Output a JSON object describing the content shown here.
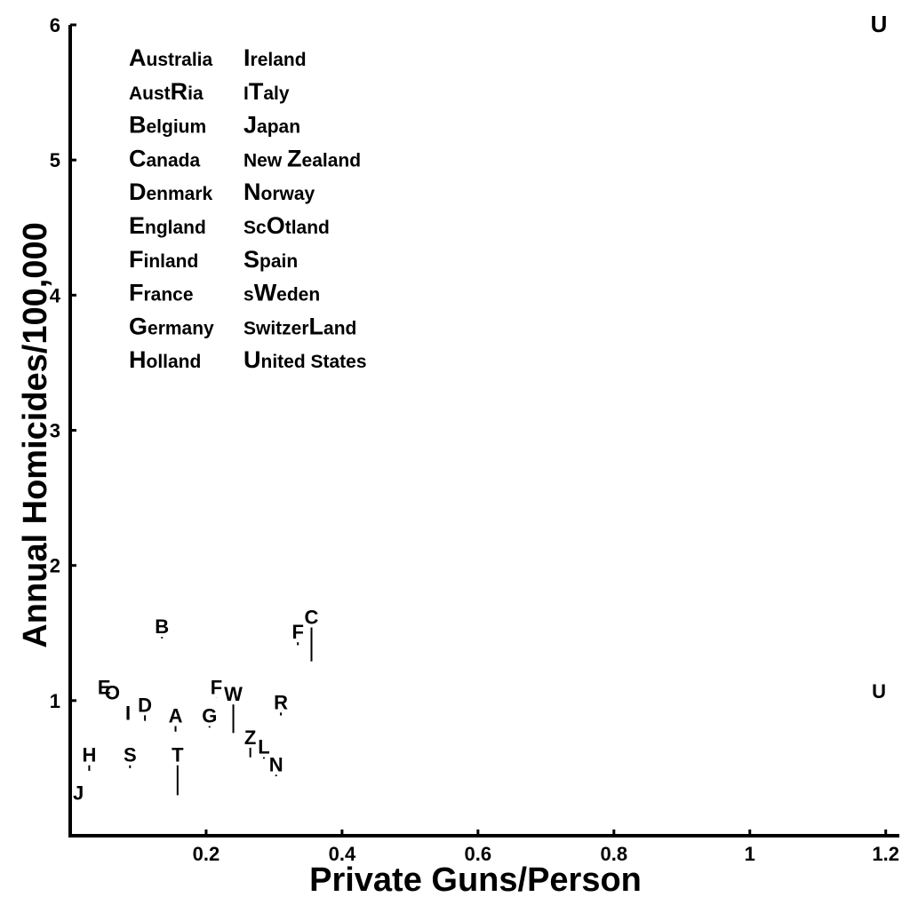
{
  "chart_data": {
    "type": "scatter",
    "title": "",
    "xlabel": "Private Guns/Person",
    "ylabel": "Annual Homicides/100,000",
    "xlim": [
      0,
      1.22
    ],
    "ylim": [
      0,
      6
    ],
    "x_ticks": [
      "0.2",
      "0.4",
      "0.6",
      "0.8",
      "1",
      "1.2"
    ],
    "y_ticks": [
      "1",
      "2",
      "3",
      "4",
      "5",
      "6"
    ],
    "grid": false,
    "legend_position": "top-left",
    "legend": [
      {
        "pre": "",
        "hi": "A",
        "post": "ustralia"
      },
      {
        "pre": "Aust",
        "hi": "R",
        "post": "ia"
      },
      {
        "pre": "",
        "hi": "B",
        "post": "elgium"
      },
      {
        "pre": "",
        "hi": "C",
        "post": "anada"
      },
      {
        "pre": "",
        "hi": "D",
        "post": "enmark"
      },
      {
        "pre": "",
        "hi": "E",
        "post": "ngland"
      },
      {
        "pre": "",
        "hi": "F",
        "post": "inland"
      },
      {
        "pre": "",
        "hi": "F",
        "post": "rance"
      },
      {
        "pre": "",
        "hi": "G",
        "post": "ermany"
      },
      {
        "pre": "",
        "hi": "H",
        "post": "olland"
      },
      {
        "pre": "",
        "hi": "I",
        "post": "reland"
      },
      {
        "pre": "I",
        "hi": "T",
        "post": "aly"
      },
      {
        "pre": "",
        "hi": "J",
        "post": "apan"
      },
      {
        "pre": "New ",
        "hi": "Z",
        "post": "ealand"
      },
      {
        "pre": "",
        "hi": "N",
        "post": "orway"
      },
      {
        "pre": "Sc",
        "hi": "O",
        "post": "tland"
      },
      {
        "pre": "",
        "hi": "S",
        "post": "pain"
      },
      {
        "pre": "s",
        "hi": "W",
        "post": "eden"
      },
      {
        "pre": "Switzer",
        "hi": "L",
        "post": "and"
      },
      {
        "pre": "",
        "hi": "U",
        "post": "nited States"
      }
    ],
    "points": [
      {
        "label": "U",
        "x": 1.19,
        "y": 6.0,
        "y_low": null,
        "big": true
      },
      {
        "label": "U",
        "x": 1.19,
        "y": 1.07,
        "y_low": null,
        "big": false
      },
      {
        "label": "C",
        "x": 0.355,
        "y": 1.62,
        "y_low": 1.29,
        "big": false
      },
      {
        "label": "F",
        "x": 0.335,
        "y": 1.51,
        "y_low": 1.41,
        "big": false
      },
      {
        "label": "B",
        "x": 0.135,
        "y": 1.55,
        "y_low": 1.46,
        "big": false
      },
      {
        "label": "E",
        "x": 0.05,
        "y": 1.1,
        "y_low": null,
        "big": false
      },
      {
        "label": "O",
        "x": 0.062,
        "y": 1.06,
        "y_low": null,
        "big": false
      },
      {
        "label": "D",
        "x": 0.11,
        "y": 0.97,
        "y_low": 0.85,
        "big": false
      },
      {
        "label": "I",
        "x": 0.085,
        "y": 0.91,
        "y_low": null,
        "big": false
      },
      {
        "label": "S",
        "x": 0.088,
        "y": 0.6,
        "y_low": 0.5,
        "big": false
      },
      {
        "label": "A",
        "x": 0.155,
        "y": 0.89,
        "y_low": 0.77,
        "big": false
      },
      {
        "label": "T",
        "x": 0.158,
        "y": 0.6,
        "y_low": 0.3,
        "big": false
      },
      {
        "label": "G",
        "x": 0.205,
        "y": 0.89,
        "y_low": 0.8,
        "big": false
      },
      {
        "label": "F",
        "x": 0.215,
        "y": 1.1,
        "y_low": 1.02,
        "big": false
      },
      {
        "label": "W",
        "x": 0.24,
        "y": 1.05,
        "y_low": 0.76,
        "big": false
      },
      {
        "label": "R",
        "x": 0.31,
        "y": 0.99,
        "y_low": 0.89,
        "big": false
      },
      {
        "label": "Z",
        "x": 0.265,
        "y": 0.73,
        "y_low": 0.58,
        "big": false
      },
      {
        "label": "L",
        "x": 0.285,
        "y": 0.66,
        "y_low": 0.57,
        "big": false
      },
      {
        "label": "N",
        "x": 0.303,
        "y": 0.53,
        "y_low": 0.44,
        "big": false
      },
      {
        "label": "H",
        "x": 0.028,
        "y": 0.6,
        "y_low": 0.48,
        "big": false
      },
      {
        "label": "J",
        "x": 0.012,
        "y": 0.32,
        "y_low": null,
        "big": false
      }
    ]
  }
}
